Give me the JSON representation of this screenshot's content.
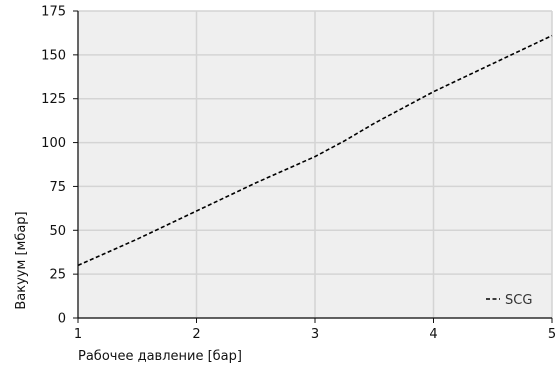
{
  "chart_data": {
    "type": "line",
    "title": "",
    "xlabel": "Рабочее давление [бар]",
    "ylabel": "Вакуум [мбар]",
    "xlim": [
      1,
      5
    ],
    "ylim": [
      0,
      175
    ],
    "x_ticks": [
      1,
      2,
      3,
      4,
      5
    ],
    "y_ticks": [
      0,
      25,
      50,
      75,
      100,
      125,
      150,
      175
    ],
    "grid": true,
    "legend_position": "bottom-right",
    "background": "#efefef",
    "grid_color": "#d4d4d4",
    "series": [
      {
        "name": "SCG",
        "style": "dashed",
        "color": "#000000",
        "x": [
          1,
          1.5,
          2,
          2.5,
          3,
          3.25,
          3.5,
          4,
          4.5,
          5
        ],
        "y": [
          30,
          45,
          61,
          77,
          92,
          101,
          111,
          129,
          145,
          161
        ]
      }
    ]
  }
}
